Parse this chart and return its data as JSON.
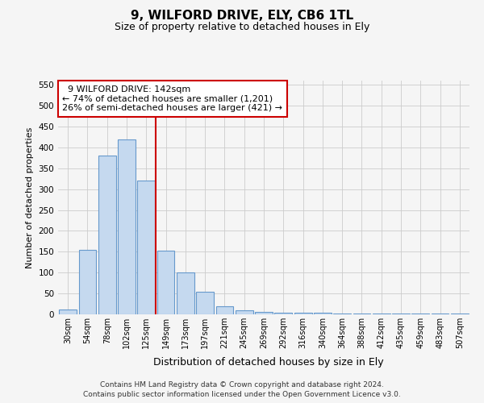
{
  "title": "9, WILFORD DRIVE, ELY, CB6 1TL",
  "subtitle": "Size of property relative to detached houses in Ely",
  "xlabel": "Distribution of detached houses by size in Ely",
  "ylabel": "Number of detached properties",
  "footnote1": "Contains HM Land Registry data © Crown copyright and database right 2024.",
  "footnote2": "Contains public sector information licensed under the Open Government Licence v3.0.",
  "bar_labels": [
    "30sqm",
    "54sqm",
    "78sqm",
    "102sqm",
    "125sqm",
    "149sqm",
    "173sqm",
    "197sqm",
    "221sqm",
    "245sqm",
    "269sqm",
    "292sqm",
    "316sqm",
    "340sqm",
    "364sqm",
    "388sqm",
    "412sqm",
    "435sqm",
    "459sqm",
    "483sqm",
    "507sqm"
  ],
  "bar_values": [
    12,
    155,
    380,
    420,
    320,
    152,
    100,
    55,
    20,
    10,
    6,
    3,
    3,
    3,
    1,
    1,
    2,
    1,
    1,
    1,
    2
  ],
  "bar_color": "#c5d9ef",
  "bar_edge_color": "#6699cc",
  "ylim": [
    0,
    560
  ],
  "yticks": [
    0,
    50,
    100,
    150,
    200,
    250,
    300,
    350,
    400,
    450,
    500,
    550
  ],
  "redline_index": 4.5,
  "annotation_title": "9 WILFORD DRIVE: 142sqm",
  "annotation_line1": "← 74% of detached houses are smaller (1,201)",
  "annotation_line2": "26% of semi-detached houses are larger (421) →",
  "annotation_box_color": "#ffffff",
  "annotation_box_edge": "#cc0000",
  "redline_color": "#cc0000",
  "background_color": "#f5f5f5",
  "grid_color": "#cccccc",
  "title_fontsize": 11,
  "subtitle_fontsize": 9
}
